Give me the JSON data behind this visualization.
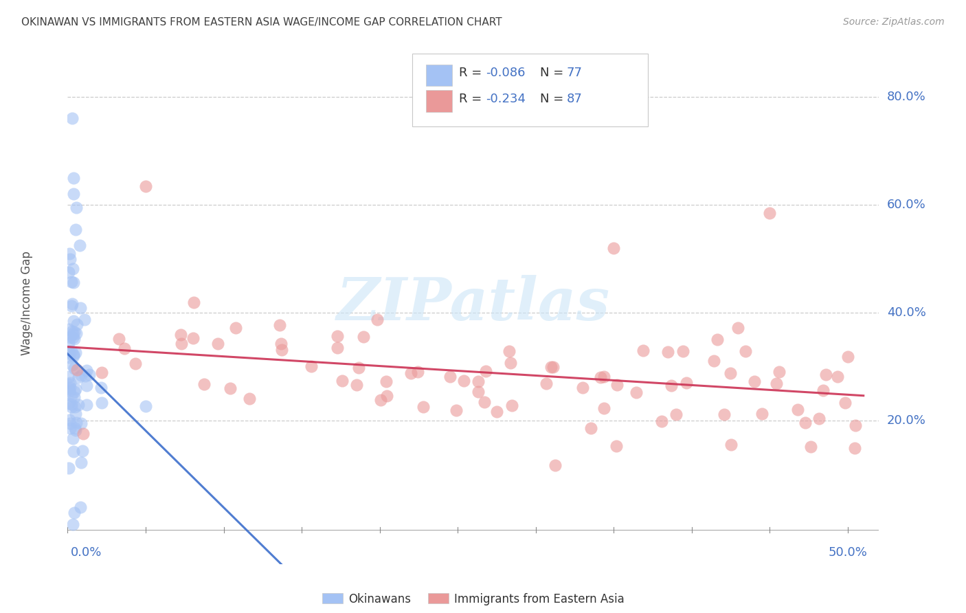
{
  "title": "OKINAWAN VS IMMIGRANTS FROM EASTERN ASIA WAGE/INCOME GAP CORRELATION CHART",
  "source": "Source: ZipAtlas.com",
  "ylabel": "Wage/Income Gap",
  "xlim": [
    0.0,
    0.52
  ],
  "ylim": [
    -0.065,
    0.9
  ],
  "watermark": "ZIPatlas",
  "legend_r1": "-0.086",
  "legend_n1": "77",
  "legend_r2": "-0.234",
  "legend_n2": "87",
  "okinawan_color": "#a4c2f4",
  "eastern_color": "#ea9999",
  "okinawan_line_color": "#3d6fcc",
  "eastern_line_color": "#cc3355",
  "grid_color": "#cccccc",
  "background_color": "#ffffff",
  "ytick_vals": [
    0.2,
    0.4,
    0.6,
    0.8
  ],
  "ytick_labels": [
    "20.0%",
    "40.0%",
    "60.0%",
    "80.0%"
  ],
  "xtick_label_left": "0.0%",
  "xtick_label_right": "50.0%",
  "legend_label_1": "Okinawans",
  "legend_label_2": "Immigrants from Eastern Asia",
  "axis_label_color": "#4472c4",
  "title_color": "#404040",
  "source_color": "#999999",
  "text_color": "#333333",
  "rn_color": "#4472c4"
}
